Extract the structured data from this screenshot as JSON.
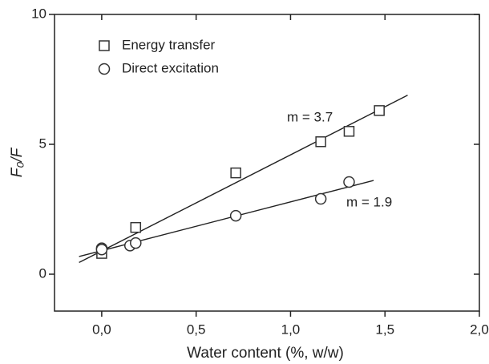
{
  "chart_data": {
    "type": "scatter",
    "xlabel": "Water content (%, w/w)",
    "ylabel": "F₀/F",
    "xlim": [
      -0.25,
      2.0
    ],
    "ylim": [
      -1.42,
      10
    ],
    "xticks": [
      {
        "value": 0,
        "label": "0,0"
      },
      {
        "value": 0.5,
        "label": "0,5"
      },
      {
        "value": 1,
        "label": "1,0"
      },
      {
        "value": 1.5,
        "label": "1,5"
      },
      {
        "value": 2,
        "label": "2,0"
      }
    ],
    "yticks": [
      0,
      5,
      10
    ],
    "legend": "upper left",
    "series": [
      {
        "name": "Energy transfer",
        "marker": "square",
        "color": "#333333",
        "x": [
          0,
          0.18,
          0.71,
          1.16,
          1.31,
          1.47
        ],
        "values": [
          0.8,
          1.8,
          3.9,
          5.1,
          5.5,
          6.3
        ]
      },
      {
        "name": "Direct excitation",
        "marker": "circle",
        "color": "#333333",
        "x": [
          0,
          0,
          0.15,
          0.18,
          0.71,
          1.16,
          1.31
        ],
        "values": [
          1.0,
          0.95,
          1.1,
          1.2,
          2.25,
          2.9,
          3.55
        ]
      }
    ],
    "fits": [
      {
        "x": [
          -0.12,
          1.62
        ],
        "values": [
          0.45,
          6.89
        ]
      },
      {
        "x": [
          -0.12,
          1.44
        ],
        "values": [
          0.68,
          3.61
        ]
      }
    ],
    "annotations": [
      "m = 3.7",
      "m = 1.9"
    ]
  }
}
